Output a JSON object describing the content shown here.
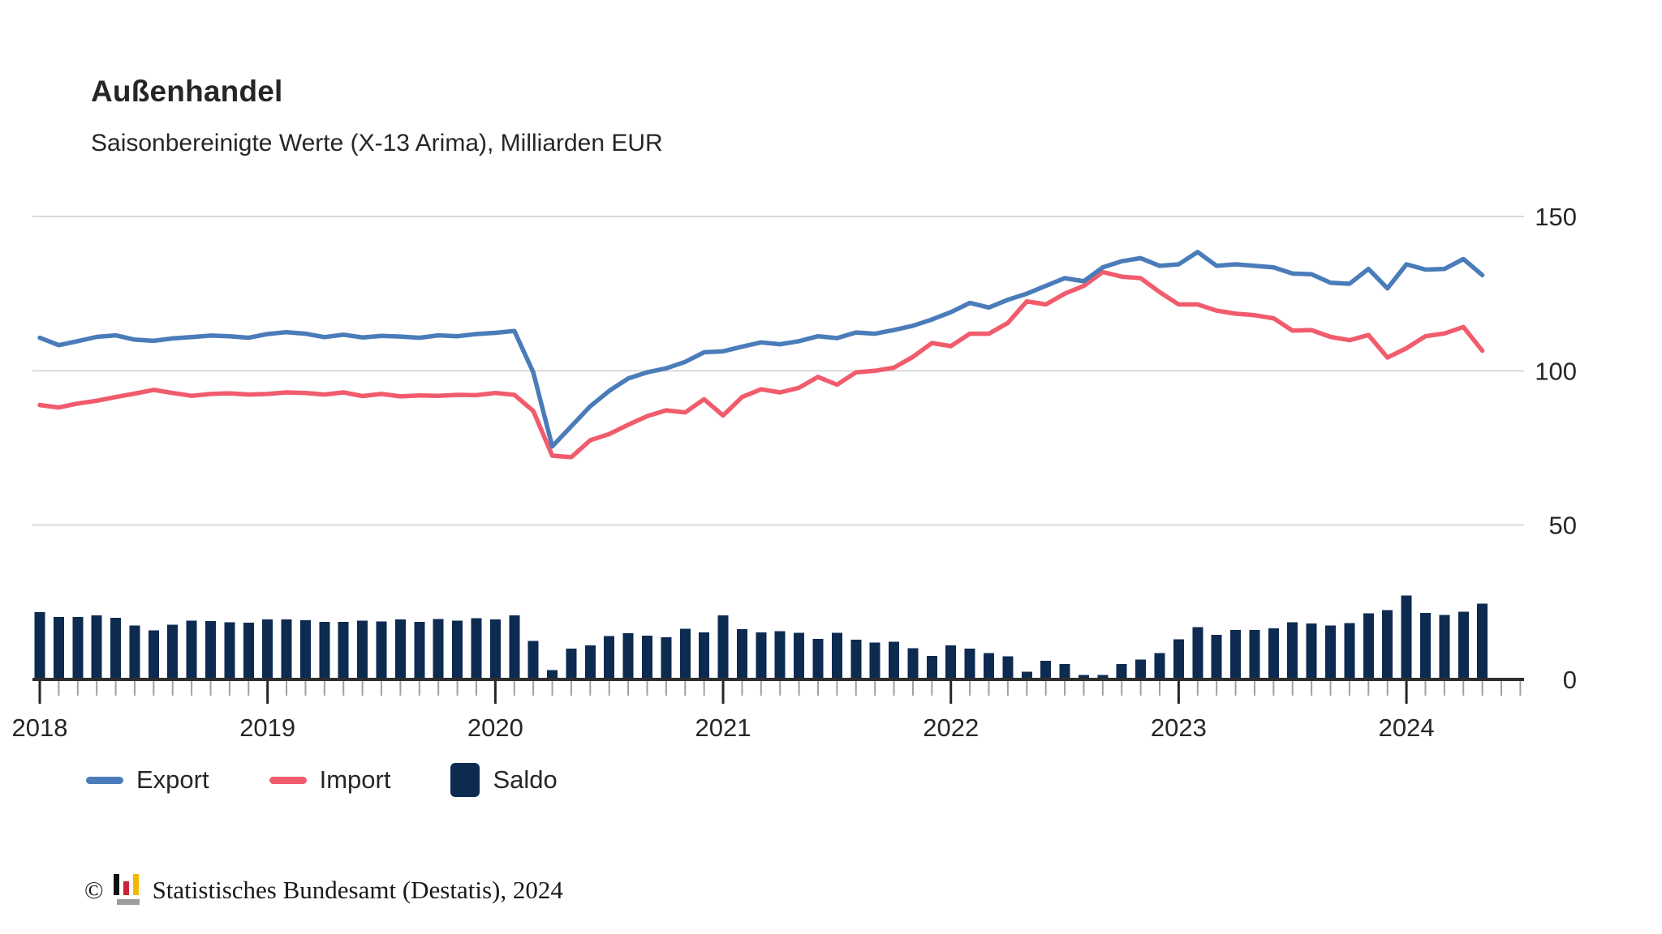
{
  "header": {
    "title": "Außenhandel",
    "subtitle": "Saisonbereinigte Werte (X-13 Arima), Milliarden EUR"
  },
  "legend": [
    {
      "label": "Export",
      "color": "#4a7cba",
      "swatch": "line"
    },
    {
      "label": "Import",
      "color": "#f15c6d",
      "swatch": "line"
    },
    {
      "label": "Saldo",
      "color": "#0d2b50",
      "swatch": "box"
    }
  ],
  "footer": {
    "copyright_symbol": "©",
    "source_text": "Statistisches Bundesamt (Destatis), 2024"
  },
  "colors": {
    "export_line": "#4a7cba",
    "import_line": "#f15c6d",
    "saldo_bar": "#0d2b50",
    "gridline": "#d9d9d9",
    "axis_line": "#2e2e2e",
    "minor_tick": "#a0a0a0",
    "major_tick": "#262626",
    "text": "#262626",
    "logo_black": "#111111",
    "logo_red": "#cc2233",
    "logo_gold": "#f5b800",
    "logo_gray": "#9d9d9d"
  },
  "chart_data": {
    "type": "line+bar",
    "title": "Außenhandel",
    "subtitle": "Saisonbereinigte Werte (X-13 Arima), Milliarden EUR",
    "unit": "Milliarden EUR",
    "grid": "horizontal",
    "legend_position": "bottom",
    "y_ticks": [
      0,
      50,
      100,
      150
    ],
    "ylim": [
      0,
      155
    ],
    "x_year_labels": [
      "2018",
      "2019",
      "2020",
      "2021",
      "2022",
      "2023",
      "2024"
    ],
    "x": [
      "2018-01",
      "2018-02",
      "2018-03",
      "2018-04",
      "2018-05",
      "2018-06",
      "2018-07",
      "2018-08",
      "2018-09",
      "2018-10",
      "2018-11",
      "2018-12",
      "2019-01",
      "2019-02",
      "2019-03",
      "2019-04",
      "2019-05",
      "2019-06",
      "2019-07",
      "2019-08",
      "2019-09",
      "2019-10",
      "2019-11",
      "2019-12",
      "2020-01",
      "2020-02",
      "2020-03",
      "2020-04",
      "2020-05",
      "2020-06",
      "2020-07",
      "2020-08",
      "2020-09",
      "2020-10",
      "2020-11",
      "2020-12",
      "2021-01",
      "2021-02",
      "2021-03",
      "2021-04",
      "2021-05",
      "2021-06",
      "2021-07",
      "2021-08",
      "2021-09",
      "2021-10",
      "2021-11",
      "2021-12",
      "2022-01",
      "2022-02",
      "2022-03",
      "2022-04",
      "2022-05",
      "2022-06",
      "2022-07",
      "2022-08",
      "2022-09",
      "2022-10",
      "2022-11",
      "2022-12",
      "2023-01",
      "2023-02",
      "2023-03",
      "2023-04",
      "2023-05",
      "2023-06",
      "2023-07",
      "2023-08",
      "2023-09",
      "2023-10",
      "2023-11",
      "2023-12",
      "2024-01",
      "2024-02",
      "2024-03",
      "2024-04",
      "2024-05"
    ],
    "series": [
      {
        "name": "Export",
        "type": "line",
        "color": "#4a7cba",
        "values": [
          110.7,
          108.3,
          109.6,
          111.0,
          111.5,
          110.1,
          109.7,
          110.5,
          110.9,
          111.4,
          111.2,
          110.7,
          111.9,
          112.5,
          112.0,
          110.9,
          111.7,
          110.8,
          111.3,
          111.1,
          110.7,
          111.5,
          111.2,
          111.9,
          112.3,
          112.9,
          99.5,
          75.5,
          82.0,
          88.5,
          93.5,
          97.5,
          99.5,
          100.8,
          102.9,
          106.0,
          106.3,
          107.8,
          109.2,
          108.6,
          109.6,
          111.2,
          110.6,
          112.4,
          112.0,
          113.2,
          114.6,
          116.6,
          119.0,
          122.0,
          120.5,
          123.0,
          125.0,
          127.5,
          130.0,
          129.0,
          133.5,
          135.5,
          136.5,
          134.0,
          134.5,
          138.5,
          134.0,
          134.5,
          134.0,
          133.5,
          131.5,
          131.3,
          128.5,
          128.2,
          133.0,
          126.7,
          134.5,
          132.8,
          133.0,
          136.2,
          131.0
        ]
      },
      {
        "name": "Import",
        "type": "line",
        "color": "#f15c6d",
        "values": [
          88.9,
          88.1,
          89.4,
          90.3,
          91.5,
          92.6,
          93.8,
          92.8,
          91.9,
          92.5,
          92.7,
          92.3,
          92.5,
          93.0,
          92.8,
          92.3,
          93.0,
          91.8,
          92.5,
          91.7,
          92.0,
          91.9,
          92.2,
          92.1,
          92.8,
          92.2,
          87.0,
          72.5,
          72.0,
          77.5,
          79.5,
          82.5,
          85.3,
          87.2,
          86.5,
          90.8,
          85.5,
          91.5,
          94.0,
          93.0,
          94.5,
          98.0,
          95.5,
          99.5,
          100.0,
          101.0,
          104.5,
          109.0,
          108.0,
          112.0,
          112.0,
          115.5,
          122.5,
          121.5,
          125.0,
          127.5,
          132.0,
          130.5,
          130.0,
          125.5,
          121.5,
          121.5,
          119.5,
          118.5,
          118.0,
          117.0,
          113.0,
          113.2,
          111.0,
          109.9,
          111.6,
          104.3,
          107.3,
          111.2,
          112.1,
          114.2,
          106.5
        ]
      },
      {
        "name": "Saldo",
        "type": "bar",
        "color": "#0d2b50",
        "values": [
          21.8,
          20.2,
          20.2,
          20.7,
          20.0,
          17.5,
          15.9,
          17.7,
          19.0,
          18.9,
          18.5,
          18.4,
          19.4,
          19.5,
          19.2,
          18.6,
          18.7,
          19.0,
          18.8,
          19.4,
          18.7,
          19.6,
          19.0,
          19.8,
          19.5,
          20.7,
          12.5,
          3.0,
          10.0,
          11.0,
          14.0,
          15.0,
          14.2,
          13.6,
          16.4,
          15.2,
          20.8,
          16.3,
          15.2,
          15.6,
          15.1,
          13.2,
          15.1,
          12.9,
          12.0,
          12.2,
          10.1,
          7.6,
          11.0,
          10.0,
          8.5,
          7.5,
          2.5,
          6.0,
          5.0,
          1.5,
          1.5,
          5.0,
          6.5,
          8.5,
          13.0,
          17.0,
          14.5,
          16.0,
          16.0,
          16.5,
          18.5,
          18.1,
          17.5,
          18.3,
          21.4,
          22.4,
          27.2,
          21.6,
          20.9,
          22.0,
          24.5
        ]
      }
    ]
  }
}
